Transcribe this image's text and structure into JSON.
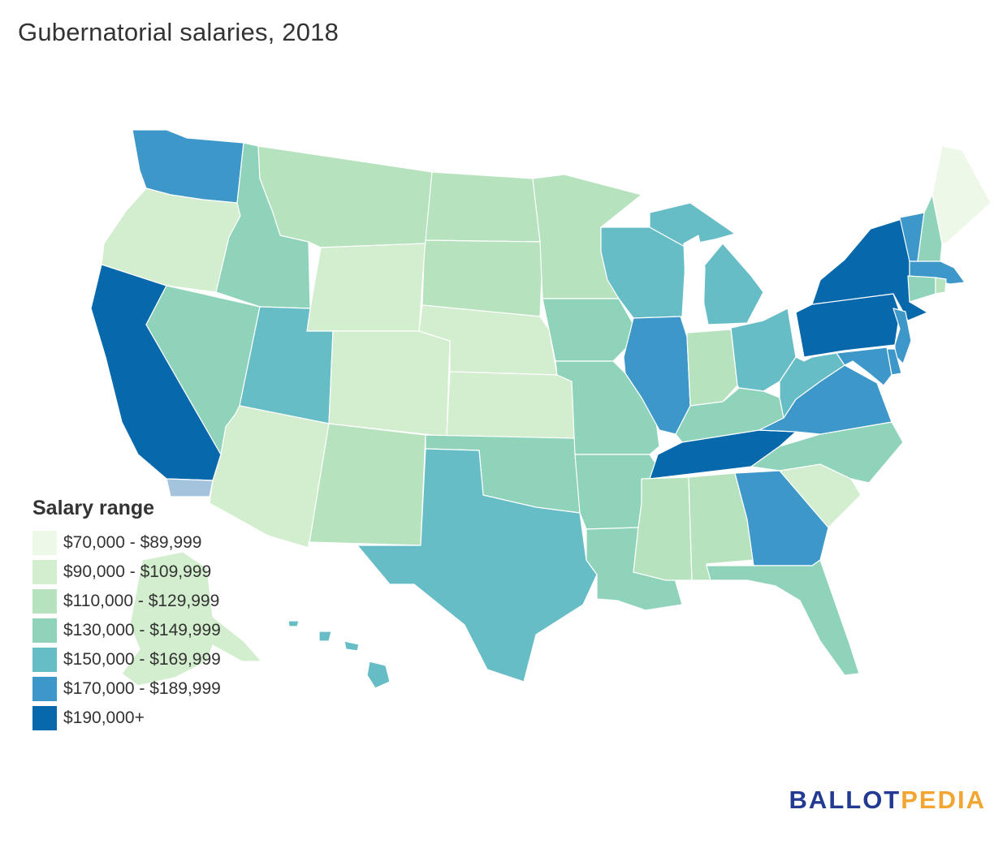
{
  "title": "Gubernatorial salaries, 2018",
  "legend": {
    "title": "Salary range",
    "items": [
      {
        "label": "$70,000 - $89,999",
        "color": "#eef8e9"
      },
      {
        "label": "$90,000 - $109,999",
        "color": "#d3eece"
      },
      {
        "label": "$110,000 - $129,999",
        "color": "#b6e3bd"
      },
      {
        "label": "$130,000 - $149,999",
        "color": "#8fd3bb"
      },
      {
        "label": "$150,000 - $169,999",
        "color": "#67bdc6"
      },
      {
        "label": "$170,000 - $189,999",
        "color": "#3d97c8"
      },
      {
        "label": "$190,000+",
        "color": "#0868ac"
      }
    ]
  },
  "brand": {
    "part1": "BALLOT",
    "part2": "PEDIA",
    "color1": "#233a93",
    "color2": "#f2a531"
  },
  "states": [
    {
      "abbr": "WA",
      "band": 5
    },
    {
      "abbr": "OR",
      "band": 1
    },
    {
      "abbr": "CA",
      "band": 6
    },
    {
      "abbr": "NV",
      "band": 3
    },
    {
      "abbr": "ID",
      "band": 3
    },
    {
      "abbr": "MT",
      "band": 2
    },
    {
      "abbr": "WY",
      "band": 1
    },
    {
      "abbr": "UT",
      "band": 4
    },
    {
      "abbr": "AZ",
      "band": 1
    },
    {
      "abbr": "CO",
      "band": 1
    },
    {
      "abbr": "NM",
      "band": 2
    },
    {
      "abbr": "ND",
      "band": 2
    },
    {
      "abbr": "SD",
      "band": 2
    },
    {
      "abbr": "NE",
      "band": 1
    },
    {
      "abbr": "KS",
      "band": 1
    },
    {
      "abbr": "OK",
      "band": 3
    },
    {
      "abbr": "TX",
      "band": 4
    },
    {
      "abbr": "MN",
      "band": 2
    },
    {
      "abbr": "IA",
      "band": 3
    },
    {
      "abbr": "MO",
      "band": 3
    },
    {
      "abbr": "AR",
      "band": 3
    },
    {
      "abbr": "LA",
      "band": 3
    },
    {
      "abbr": "WI",
      "band": 4
    },
    {
      "abbr": "IL",
      "band": 5
    },
    {
      "abbr": "MI",
      "band": 4
    },
    {
      "abbr": "IN",
      "band": 2
    },
    {
      "abbr": "OH",
      "band": 4
    },
    {
      "abbr": "KY",
      "band": 3
    },
    {
      "abbr": "TN",
      "band": 6
    },
    {
      "abbr": "MS",
      "band": 2
    },
    {
      "abbr": "AL",
      "band": 2
    },
    {
      "abbr": "GA",
      "band": 5
    },
    {
      "abbr": "FL",
      "band": 3
    },
    {
      "abbr": "SC",
      "band": 1
    },
    {
      "abbr": "NC",
      "band": 3
    },
    {
      "abbr": "VA",
      "band": 5
    },
    {
      "abbr": "WV",
      "band": 4
    },
    {
      "abbr": "PA",
      "band": 6
    },
    {
      "abbr": "NY",
      "band": 6
    },
    {
      "abbr": "NJ",
      "band": 5
    },
    {
      "abbr": "DE",
      "band": 5
    },
    {
      "abbr": "MD",
      "band": 5
    },
    {
      "abbr": "VT",
      "band": 5
    },
    {
      "abbr": "NH",
      "band": 3
    },
    {
      "abbr": "ME",
      "band": 0
    },
    {
      "abbr": "MA",
      "band": 5
    },
    {
      "abbr": "CT",
      "band": 3
    },
    {
      "abbr": "RI",
      "band": 2
    },
    {
      "abbr": "AK",
      "band": 1
    },
    {
      "abbr": "HI",
      "band": 4
    }
  ]
}
